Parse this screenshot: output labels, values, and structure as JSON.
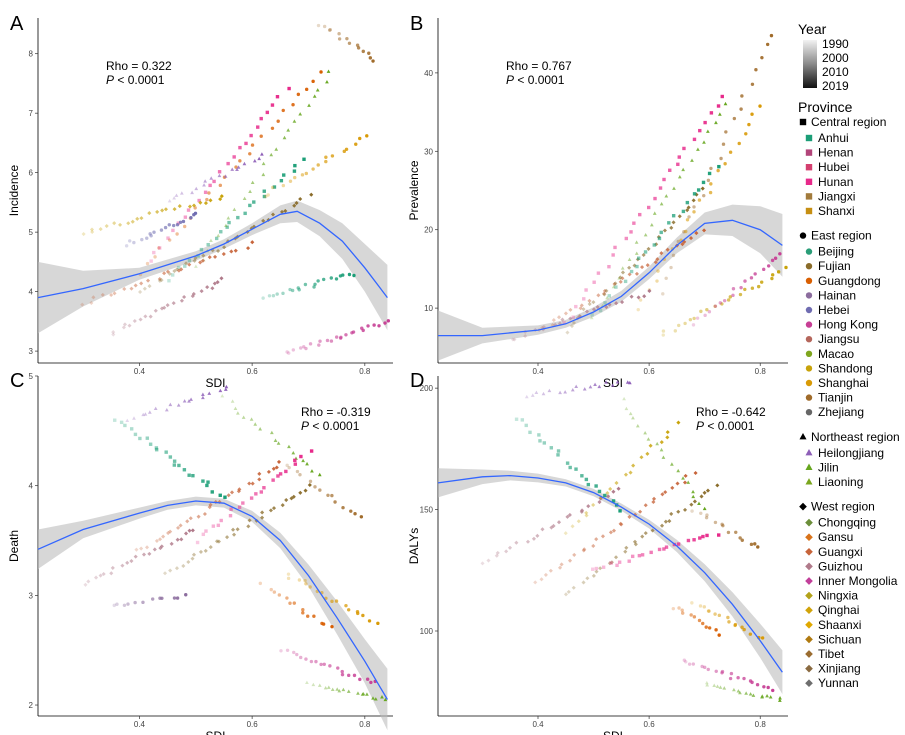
{
  "legend": {
    "year_title": "Year",
    "year_ticks": [
      "1990",
      "2000",
      "2010",
      "2019"
    ],
    "province_title": "Province",
    "regions": [
      {
        "name": "Central region",
        "shape": "square",
        "provinces": [
          {
            "name": "Anhui",
            "color": "#1b9e77"
          },
          {
            "name": "Henan",
            "color": "#b2457a"
          },
          {
            "name": "Hubei",
            "color": "#d43f6f"
          },
          {
            "name": "Hunan",
            "color": "#e7298a"
          },
          {
            "name": "Jiangxi",
            "color": "#a27b3c"
          },
          {
            "name": "Shanxi",
            "color": "#c68f12"
          }
        ]
      },
      {
        "name": "East region",
        "shape": "circle",
        "provinces": [
          {
            "name": "Beijing",
            "color": "#2a9d78"
          },
          {
            "name": "Fujian",
            "color": "#8a6c2a"
          },
          {
            "name": "Guangdong",
            "color": "#d95f02"
          },
          {
            "name": "Hainan",
            "color": "#8c6d9e"
          },
          {
            "name": "Hebei",
            "color": "#6f6cb1"
          },
          {
            "name": "Hong Kong",
            "color": "#c73f95"
          },
          {
            "name": "Jiangsu",
            "color": "#b5665b"
          },
          {
            "name": "Macao",
            "color": "#7fa61e"
          },
          {
            "name": "Shandong",
            "color": "#c8a30a"
          },
          {
            "name": "Shanghai",
            "color": "#d99a06"
          },
          {
            "name": "Tianjin",
            "color": "#a06b2a"
          },
          {
            "name": "Zhejiang",
            "color": "#666666"
          }
        ]
      },
      {
        "name": "Northeast region",
        "shape": "triangle",
        "provinces": [
          {
            "name": "Heilongjiang",
            "color": "#8e5fb8"
          },
          {
            "name": "Jilin",
            "color": "#66a61e"
          },
          {
            "name": "Liaoning",
            "color": "#7aa61e"
          }
        ]
      },
      {
        "name": "West region",
        "shape": "diamond",
        "provinces": [
          {
            "name": "Chongqing",
            "color": "#6b8e3a"
          },
          {
            "name": "Gansu",
            "color": "#d9731a"
          },
          {
            "name": "Guangxi",
            "color": "#c7643a"
          },
          {
            "name": "Guizhou",
            "color": "#b07a8a"
          },
          {
            "name": "Inner Mongolia",
            "color": "#c23f9a"
          },
          {
            "name": "Ningxia",
            "color": "#b3a21a"
          },
          {
            "name": "Qinghai",
            "color": "#d1a30a"
          },
          {
            "name": "Shaanxi",
            "color": "#e0a800"
          },
          {
            "name": "Sichuan",
            "color": "#b07a10"
          },
          {
            "name": "Tibet",
            "color": "#9a6c30"
          },
          {
            "name": "Xinjiang",
            "color": "#8a6a40"
          },
          {
            "name": "Yunnan",
            "color": "#6e6e6e"
          }
        ]
      }
    ]
  },
  "chart_data": [
    {
      "panel": "A",
      "type": "scatter",
      "xlabel": "SDI",
      "ylabel": "Incidence",
      "xlim": [
        0.22,
        0.85
      ],
      "ylim": [
        2.8,
        8.6
      ],
      "xticks": [
        0.4,
        0.6,
        0.8
      ],
      "yticks": [
        3,
        4,
        5,
        6,
        7,
        8
      ],
      "rho": "Rho = 0.322",
      "p": "P < 0.0001",
      "stats_pos": "top-left",
      "smooth": {
        "x": [
          0.22,
          0.3,
          0.4,
          0.5,
          0.55,
          0.6,
          0.65,
          0.68,
          0.72,
          0.76,
          0.8,
          0.84
        ],
        "y": [
          3.9,
          4.05,
          4.3,
          4.6,
          4.8,
          5.05,
          5.3,
          5.35,
          5.15,
          4.85,
          4.4,
          3.9
        ],
        "band": [
          0.6,
          0.3,
          0.1,
          0.08,
          0.08,
          0.1,
          0.15,
          0.18,
          0.22,
          0.3,
          0.4,
          0.55
        ]
      },
      "clusters": [
        {
          "x0": 0.4,
          "x1": 0.72,
          "y0": 4.3,
          "y1": 7.7,
          "n": 26,
          "color": "#d95f02",
          "shape": "circle"
        },
        {
          "x0": 0.45,
          "x1": 0.69,
          "y0": 4.2,
          "y1": 6.2,
          "n": 24,
          "color": "#1b9e77",
          "shape": "square"
        },
        {
          "x0": 0.42,
          "x1": 0.66,
          "y0": 4.5,
          "y1": 7.4,
          "n": 24,
          "color": "#e7298a",
          "shape": "square"
        },
        {
          "x0": 0.5,
          "x1": 0.74,
          "y0": 4.4,
          "y1": 7.7,
          "n": 24,
          "color": "#66a61e",
          "shape": "triangle"
        },
        {
          "x0": 0.62,
          "x1": 0.78,
          "y0": 3.9,
          "y1": 4.3,
          "n": 20,
          "color": "#1b9e77",
          "shape": "circle"
        },
        {
          "x0": 0.66,
          "x1": 0.84,
          "y0": 2.95,
          "y1": 3.5,
          "n": 24,
          "color": "#c73f95",
          "shape": "circle"
        },
        {
          "x0": 0.72,
          "x1": 0.82,
          "y0": 8.5,
          "y1": 7.9,
          "n": 14,
          "color": "#a06b2a",
          "shape": "circle"
        },
        {
          "x0": 0.62,
          "x1": 0.8,
          "y0": 5.6,
          "y1": 6.6,
          "n": 18,
          "color": "#d99a06",
          "shape": "circle"
        },
        {
          "x0": 0.3,
          "x1": 0.6,
          "y0": 3.8,
          "y1": 4.8,
          "n": 26,
          "color": "#c7643a",
          "shape": "diamond"
        },
        {
          "x0": 0.35,
          "x1": 0.55,
          "y0": 3.3,
          "y1": 4.2,
          "n": 24,
          "color": "#b07a8a",
          "shape": "diamond"
        },
        {
          "x0": 0.38,
          "x1": 0.5,
          "y0": 4.8,
          "y1": 5.3,
          "n": 18,
          "color": "#6f6cb1",
          "shape": "circle"
        },
        {
          "x0": 0.3,
          "x1": 0.55,
          "y0": 5.0,
          "y1": 5.6,
          "n": 24,
          "color": "#c8a30a",
          "shape": "diamond"
        },
        {
          "x0": 0.45,
          "x1": 0.62,
          "y0": 5.5,
          "y1": 6.3,
          "n": 18,
          "color": "#8e5fb8",
          "shape": "triangle"
        },
        {
          "x0": 0.4,
          "x1": 0.7,
          "y0": 4.0,
          "y1": 5.6,
          "n": 30,
          "color": "#8a6c2a",
          "shape": "diamond"
        }
      ]
    },
    {
      "panel": "B",
      "type": "scatter",
      "xlabel": "SDI",
      "ylabel": "Prevalence",
      "xlim": [
        0.22,
        0.85
      ],
      "ylim": [
        3,
        47
      ],
      "xticks": [
        0.4,
        0.6,
        0.8
      ],
      "yticks": [
        10,
        20,
        30,
        40
      ],
      "rho": "Rho = 0.767",
      "p": "P < 0.0001",
      "stats_pos": "top-left",
      "smooth": {
        "x": [
          0.22,
          0.3,
          0.4,
          0.45,
          0.5,
          0.55,
          0.6,
          0.65,
          0.7,
          0.75,
          0.8,
          0.84
        ],
        "y": [
          6.5,
          6.5,
          7.2,
          8.0,
          9.5,
          11.5,
          14.5,
          18.0,
          20.8,
          21.2,
          20.0,
          18.0
        ],
        "band": [
          3.2,
          1.0,
          0.6,
          0.5,
          0.6,
          0.7,
          0.8,
          1.0,
          1.4,
          2.0,
          3.0,
          4.0
        ]
      },
      "clusters": [
        {
          "x0": 0.45,
          "x1": 0.73,
          "y0": 8,
          "y1": 37,
          "n": 28,
          "color": "#e7298a",
          "shape": "square"
        },
        {
          "x0": 0.5,
          "x1": 0.74,
          "y0": 9,
          "y1": 36,
          "n": 24,
          "color": "#66a61e",
          "shape": "triangle"
        },
        {
          "x0": 0.62,
          "x1": 0.82,
          "y0": 12,
          "y1": 45,
          "n": 22,
          "color": "#a06b2a",
          "shape": "circle"
        },
        {
          "x0": 0.58,
          "x1": 0.8,
          "y0": 10,
          "y1": 36,
          "n": 22,
          "color": "#d99a06",
          "shape": "circle"
        },
        {
          "x0": 0.4,
          "x1": 0.7,
          "y0": 7,
          "y1": 20,
          "n": 30,
          "color": "#c7643a",
          "shape": "diamond"
        },
        {
          "x0": 0.45,
          "x1": 0.7,
          "y0": 7,
          "y1": 25,
          "n": 28,
          "color": "#8a6c2a",
          "shape": "diamond"
        },
        {
          "x0": 0.62,
          "x1": 0.85,
          "y0": 6.5,
          "y1": 15,
          "n": 22,
          "color": "#c8a30a",
          "shape": "circle"
        },
        {
          "x0": 0.68,
          "x1": 0.84,
          "y0": 8,
          "y1": 17,
          "n": 18,
          "color": "#c73f95",
          "shape": "circle"
        },
        {
          "x0": 0.35,
          "x1": 0.6,
          "y0": 6,
          "y1": 12,
          "n": 24,
          "color": "#b07a8a",
          "shape": "diamond"
        },
        {
          "x0": 0.5,
          "x1": 0.72,
          "y0": 9,
          "y1": 28,
          "n": 22,
          "color": "#1b9e77",
          "shape": "square"
        }
      ]
    },
    {
      "panel": "C",
      "type": "scatter",
      "xlabel": "SDI",
      "ylabel": "Death",
      "xlim": [
        0.22,
        0.85
      ],
      "ylim": [
        1.9,
        5.0
      ],
      "xticks": [
        0.4,
        0.6,
        0.8
      ],
      "yticks": [
        2,
        3,
        4,
        5
      ],
      "rho": "Rho = -0.319",
      "p": "P < 0.0001",
      "stats_pos": "top-right",
      "smooth": {
        "x": [
          0.22,
          0.3,
          0.4,
          0.45,
          0.5,
          0.55,
          0.6,
          0.65,
          0.7,
          0.75,
          0.8,
          0.84
        ],
        "y": [
          3.42,
          3.6,
          3.75,
          3.82,
          3.86,
          3.84,
          3.72,
          3.5,
          3.18,
          2.8,
          2.4,
          2.05
        ],
        "band": [
          0.18,
          0.08,
          0.05,
          0.04,
          0.04,
          0.04,
          0.05,
          0.07,
          0.1,
          0.15,
          0.2,
          0.28
        ]
      },
      "clusters": [
        {
          "x0": 0.38,
          "x1": 0.56,
          "y0": 4.6,
          "y1": 4.9,
          "n": 18,
          "color": "#8e5fb8",
          "shape": "triangle"
        },
        {
          "x0": 0.55,
          "x1": 0.72,
          "y0": 4.8,
          "y1": 4.1,
          "n": 18,
          "color": "#66a61e",
          "shape": "triangle"
        },
        {
          "x0": 0.66,
          "x1": 0.79,
          "y0": 4.2,
          "y1": 3.7,
          "n": 14,
          "color": "#a06b2a",
          "shape": "circle"
        },
        {
          "x0": 0.36,
          "x1": 0.55,
          "y0": 4.6,
          "y1": 3.9,
          "n": 24,
          "color": "#1b9e77",
          "shape": "square"
        },
        {
          "x0": 0.4,
          "x1": 0.65,
          "y0": 3.4,
          "y1": 4.2,
          "n": 30,
          "color": "#c7643a",
          "shape": "diamond"
        },
        {
          "x0": 0.45,
          "x1": 0.7,
          "y0": 3.2,
          "y1": 4.0,
          "n": 30,
          "color": "#8a6c2a",
          "shape": "diamond"
        },
        {
          "x0": 0.3,
          "x1": 0.5,
          "y0": 3.1,
          "y1": 3.6,
          "n": 22,
          "color": "#b07a8a",
          "shape": "diamond"
        },
        {
          "x0": 0.35,
          "x1": 0.48,
          "y0": 2.9,
          "y1": 3.0,
          "n": 12,
          "color": "#8c6d9e",
          "shape": "circle"
        },
        {
          "x0": 0.65,
          "x1": 0.82,
          "y0": 2.5,
          "y1": 2.2,
          "n": 20,
          "color": "#c73f95",
          "shape": "circle"
        },
        {
          "x0": 0.7,
          "x1": 0.84,
          "y0": 2.2,
          "y1": 2.05,
          "n": 18,
          "color": "#66a61e",
          "shape": "triangle"
        },
        {
          "x0": 0.66,
          "x1": 0.82,
          "y0": 3.2,
          "y1": 2.75,
          "n": 18,
          "color": "#d99a06",
          "shape": "circle"
        },
        {
          "x0": 0.62,
          "x1": 0.74,
          "y0": 3.1,
          "y1": 2.7,
          "n": 14,
          "color": "#d95f02",
          "shape": "circle"
        },
        {
          "x0": 0.5,
          "x1": 0.7,
          "y0": 3.5,
          "y1": 4.3,
          "n": 22,
          "color": "#e7298a",
          "shape": "square"
        }
      ]
    },
    {
      "panel": "D",
      "type": "scatter",
      "xlabel": "SDI",
      "ylabel": "DALYs",
      "xlim": [
        0.22,
        0.85
      ],
      "ylim": [
        65,
        205
      ],
      "xticks": [
        0.4,
        0.6,
        0.8
      ],
      "yticks": [
        100,
        150,
        200
      ],
      "rho": "Rho = -0.642",
      "p": "P < 0.0001",
      "stats_pos": "top-right",
      "smooth": {
        "x": [
          0.22,
          0.3,
          0.35,
          0.4,
          0.45,
          0.5,
          0.55,
          0.6,
          0.65,
          0.7,
          0.75,
          0.8,
          0.84
        ],
        "y": [
          161,
          163.5,
          164,
          163,
          161,
          157,
          151,
          144,
          135,
          124,
          111,
          96,
          83
        ],
        "band": [
          6,
          3,
          2,
          1.8,
          1.5,
          1.5,
          1.5,
          1.8,
          2.5,
          3.5,
          5,
          7,
          9
        ]
      },
      "clusters": [
        {
          "x0": 0.38,
          "x1": 0.57,
          "y0": 197,
          "y1": 203,
          "n": 18,
          "color": "#8e5fb8",
          "shape": "triangle"
        },
        {
          "x0": 0.55,
          "x1": 0.7,
          "y0": 195,
          "y1": 150,
          "n": 18,
          "color": "#66a61e",
          "shape": "triangle"
        },
        {
          "x0": 0.68,
          "x1": 0.8,
          "y0": 150,
          "y1": 134,
          "n": 14,
          "color": "#a06b2a",
          "shape": "circle"
        },
        {
          "x0": 0.36,
          "x1": 0.55,
          "y0": 188,
          "y1": 150,
          "n": 22,
          "color": "#1b9e77",
          "shape": "square"
        },
        {
          "x0": 0.4,
          "x1": 0.68,
          "y0": 120,
          "y1": 165,
          "n": 30,
          "color": "#c7643a",
          "shape": "diamond"
        },
        {
          "x0": 0.45,
          "x1": 0.72,
          "y0": 115,
          "y1": 160,
          "n": 30,
          "color": "#8a6c2a",
          "shape": "diamond"
        },
        {
          "x0": 0.3,
          "x1": 0.55,
          "y0": 128,
          "y1": 158,
          "n": 24,
          "color": "#b07a8a",
          "shape": "diamond"
        },
        {
          "x0": 0.66,
          "x1": 0.82,
          "y0": 88,
          "y1": 76,
          "n": 20,
          "color": "#c73f95",
          "shape": "circle"
        },
        {
          "x0": 0.7,
          "x1": 0.84,
          "y0": 78,
          "y1": 72,
          "n": 18,
          "color": "#66a61e",
          "shape": "triangle"
        },
        {
          "x0": 0.68,
          "x1": 0.8,
          "y0": 112,
          "y1": 97,
          "n": 16,
          "color": "#d99a06",
          "shape": "circle"
        },
        {
          "x0": 0.64,
          "x1": 0.73,
          "y0": 110,
          "y1": 99,
          "n": 12,
          "color": "#d95f02",
          "shape": "circle"
        },
        {
          "x0": 0.5,
          "x1": 0.72,
          "y0": 125,
          "y1": 140,
          "n": 22,
          "color": "#e7298a",
          "shape": "square"
        },
        {
          "x0": 0.45,
          "x1": 0.65,
          "y0": 140,
          "y1": 185,
          "n": 20,
          "color": "#c8a30a",
          "shape": "diamond"
        }
      ]
    }
  ]
}
